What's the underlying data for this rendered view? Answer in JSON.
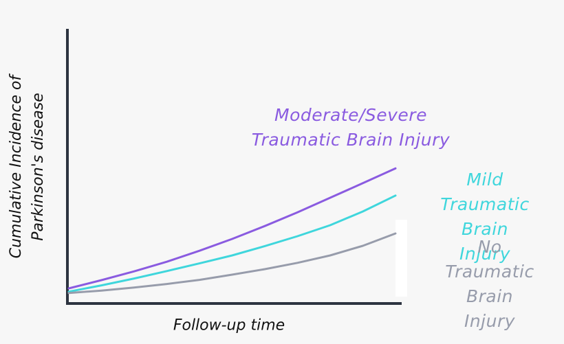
{
  "chart_data": {
    "type": "line",
    "x_label": "Follow-up time",
    "y_label": "Cumulative Incidence of\nParkinson's disease",
    "x": [
      0,
      1,
      2,
      3,
      4,
      5,
      6,
      7,
      8,
      9,
      10
    ],
    "xlim": [
      0,
      10
    ],
    "ylim": [
      0,
      100
    ],
    "series": [
      {
        "name": "Moderate/Severe\nTraumatic Brain Injury",
        "color": "#8a5be0",
        "values": [
          5.5,
          8.5,
          11.7,
          15.2,
          19.2,
          23.5,
          28.2,
          33.2,
          38.5,
          43.8,
          49.2
        ]
      },
      {
        "name": "Mild Traumatic\nBrain Injury",
        "color": "#3fd6dc",
        "values": [
          4.3,
          6.6,
          9.1,
          11.8,
          14.6,
          17.5,
          20.9,
          24.5,
          28.5,
          33.5,
          39.3
        ]
      },
      {
        "name": "No Traumatic\nBrain Injury",
        "color": "#979cab",
        "values": [
          3.8,
          4.7,
          5.8,
          7.1,
          8.6,
          10.5,
          12.5,
          14.8,
          17.5,
          21,
          25.5
        ]
      }
    ]
  }
}
